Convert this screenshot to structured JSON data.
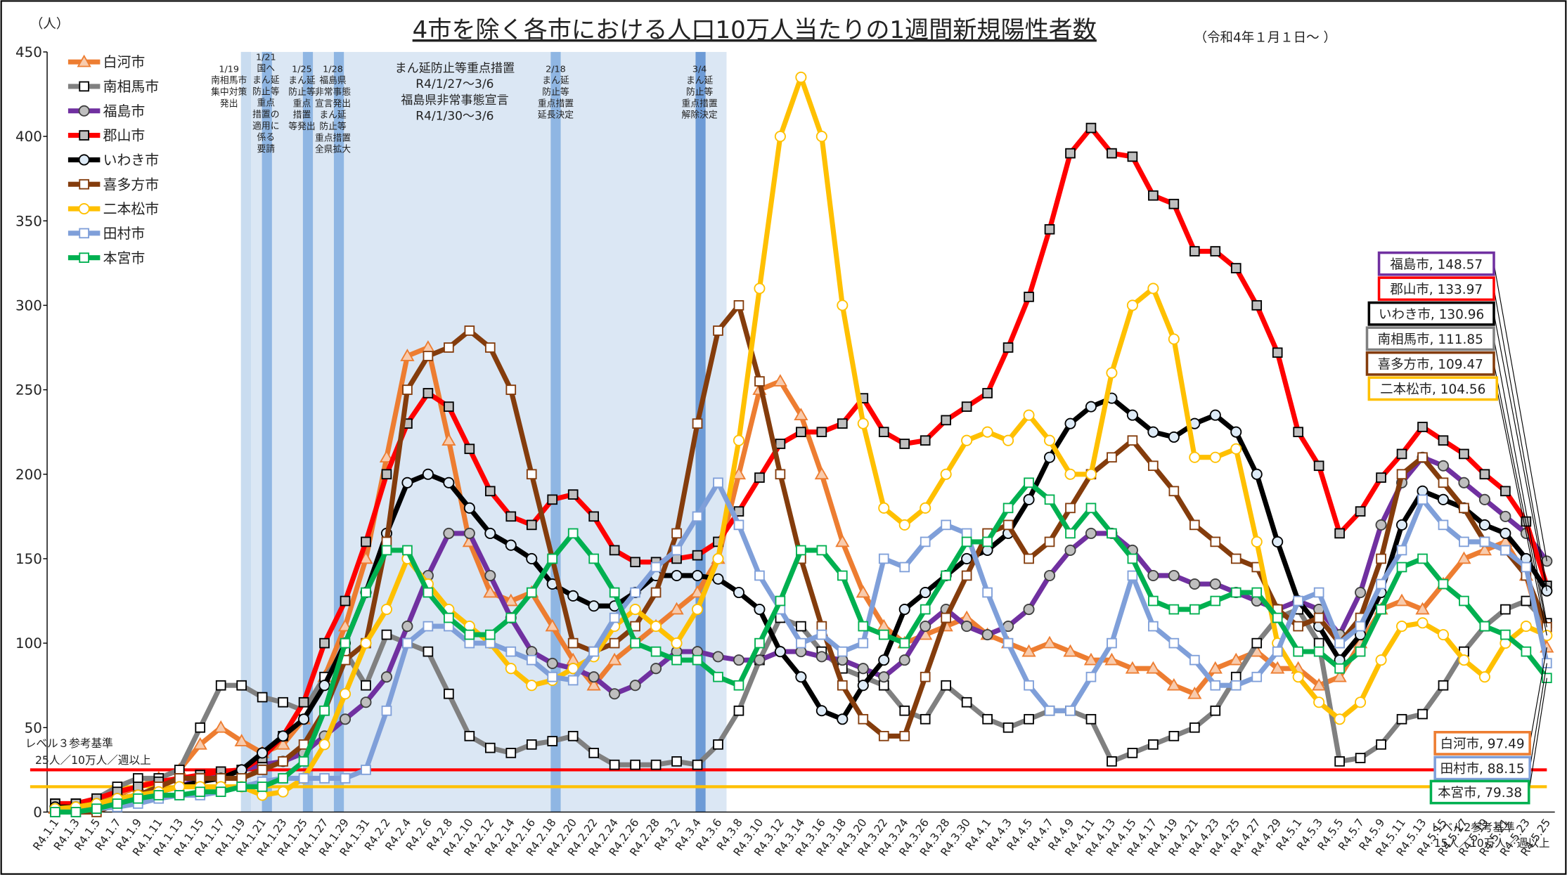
{
  "chart_data": {
    "type": "line",
    "title": "4市を除く各市における人口10万人当たりの1週間新規陽性者数",
    "subtitle": "（令和4年１月１日～ ）",
    "y_unit": "（人）",
    "legend": "upper left",
    "grid": false,
    "ylim": [
      0,
      450
    ],
    "yticks": [
      0,
      50,
      100,
      150,
      200,
      250,
      300,
      350,
      400,
      450
    ],
    "categories": [
      "R4.1.1",
      "R4.1.3",
      "R4.1.5",
      "R4.1.7",
      "R4.1.9",
      "R4.1.11",
      "R4.1.13",
      "R4.1.15",
      "R4.1.17",
      "R4.1.19",
      "R4.1.21",
      "R4.1.23",
      "R4.1.25",
      "R4.1.27",
      "R4.1.29",
      "R4.1.31",
      "R4.2.2",
      "R4.2.4",
      "R4.2.6",
      "R4.2.8",
      "R4.2.10",
      "R4.2.12",
      "R4.2.14",
      "R4.2.16",
      "R4.2.18",
      "R4.2.20",
      "R4.2.22",
      "R4.2.24",
      "R4.2.26",
      "R4.2.28",
      "R4.3.2",
      "R4.3.4",
      "R4.3.6",
      "R4.3.8",
      "R4.3.10",
      "R4.3.12",
      "R4.3.14",
      "R4.3.16",
      "R4.3.18",
      "R4.3.20",
      "R4.3.22",
      "R4.3.24",
      "R4.3.26",
      "R4.3.28",
      "R4.3.30",
      "R4.4.1",
      "R4.4.3",
      "R4.4.5",
      "R4.4.7",
      "R4.4.9",
      "R4.4.11",
      "R4.4.13",
      "R4.4.15",
      "R4.4.17",
      "R4.4.19",
      "R4.4.21",
      "R4.4.23",
      "R4.4.25",
      "R4.4.27",
      "R4.4.29",
      "R4.5.1",
      "R4.5.3",
      "R4.5.5",
      "R4.5.7",
      "R4.5.9",
      "R4.5.11",
      "R4.5.13",
      "R4.5.15",
      "R4.5.17",
      "R4.5.19",
      "R4.5.21",
      "R4.5.23",
      "R4.5.25"
    ],
    "series": [
      {
        "name": "白河市",
        "color": "#ed7d31",
        "marker": "triangle",
        "marker_fill": "#f8cbad",
        "marker_edge": "#ed7d31",
        "end_label": "白河市, 97.49",
        "values": [
          2,
          3,
          5,
          10,
          15,
          20,
          25,
          40,
          50,
          42,
          35,
          40,
          55,
          80,
          110,
          150,
          210,
          270,
          275,
          220,
          160,
          130,
          125,
          130,
          110,
          90,
          75,
          90,
          100,
          110,
          120,
          130,
          150,
          200,
          250,
          255,
          235,
          200,
          160,
          130,
          110,
          100,
          105,
          110,
          115,
          105,
          100,
          95,
          100,
          95,
          90,
          90,
          85,
          85,
          75,
          70,
          85,
          90,
          95,
          85,
          85,
          75,
          80,
          100,
          120,
          125,
          120,
          135,
          150,
          155,
          160,
          140,
          97.49
        ]
      },
      {
        "name": "南相馬市",
        "color": "#808080",
        "marker": "square",
        "marker_fill": "#ffffff",
        "marker_edge": "#000000",
        "end_label": "南相馬市, 111.85",
        "values": [
          5,
          5,
          8,
          15,
          20,
          20,
          25,
          50,
          75,
          75,
          68,
          65,
          60,
          80,
          95,
          75,
          105,
          100,
          95,
          70,
          45,
          38,
          35,
          40,
          42,
          45,
          35,
          28,
          28,
          28,
          30,
          28,
          40,
          60,
          90,
          115,
          110,
          95,
          85,
          80,
          75,
          60,
          55,
          75,
          65,
          55,
          50,
          55,
          60,
          60,
          55,
          30,
          35,
          40,
          45,
          50,
          60,
          80,
          100,
          115,
          120,
          100,
          30,
          32,
          40,
          55,
          58,
          75,
          95,
          110,
          120,
          125,
          111.85
        ]
      },
      {
        "name": "福島市",
        "color": "#7030a0",
        "marker": "circle",
        "marker_fill": "#bfbfbf",
        "marker_edge": "#404040",
        "end_label": "福島市, 148.57",
        "values": [
          2,
          3,
          5,
          8,
          10,
          12,
          15,
          20,
          22,
          25,
          28,
          30,
          35,
          45,
          55,
          65,
          80,
          110,
          140,
          165,
          165,
          140,
          115,
          95,
          88,
          85,
          80,
          70,
          75,
          85,
          95,
          95,
          92,
          90,
          90,
          95,
          95,
          92,
          90,
          85,
          80,
          90,
          110,
          120,
          110,
          105,
          110,
          120,
          140,
          155,
          165,
          165,
          155,
          140,
          140,
          135,
          135,
          130,
          125,
          120,
          125,
          120,
          105,
          130,
          170,
          195,
          210,
          205,
          195,
          185,
          175,
          165,
          148.57
        ]
      },
      {
        "name": "郡山市",
        "color": "#ff0000",
        "marker": "square",
        "marker_fill": "#bfbfbf",
        "marker_edge": "#000000",
        "end_label": "郡山市, 133.97",
        "values": [
          5,
          5,
          8,
          12,
          15,
          18,
          20,
          22,
          24,
          25,
          32,
          45,
          65,
          100,
          125,
          160,
          200,
          230,
          248,
          240,
          215,
          190,
          175,
          170,
          185,
          188,
          175,
          155,
          148,
          148,
          150,
          152,
          160,
          178,
          198,
          218,
          225,
          225,
          230,
          245,
          225,
          218,
          220,
          232,
          240,
          248,
          275,
          305,
          345,
          390,
          405,
          390,
          388,
          365,
          360,
          332,
          332,
          322,
          300,
          272,
          225,
          205,
          165,
          178,
          198,
          212,
          228,
          220,
          212,
          200,
          190,
          172,
          133.97
        ]
      },
      {
        "name": "いわき市",
        "color": "#000000",
        "marker": "circle",
        "marker_fill": "#deebf7",
        "marker_edge": "#000000",
        "end_label": "いわき市, 130.96",
        "values": [
          3,
          3,
          5,
          8,
          10,
          12,
          15,
          18,
          20,
          25,
          35,
          45,
          55,
          75,
          100,
          130,
          165,
          195,
          200,
          195,
          180,
          165,
          158,
          150,
          135,
          128,
          122,
          122,
          130,
          140,
          140,
          140,
          138,
          130,
          120,
          95,
          80,
          60,
          55,
          75,
          90,
          120,
          130,
          140,
          150,
          155,
          165,
          185,
          210,
          230,
          240,
          245,
          235,
          225,
          222,
          230,
          235,
          225,
          200,
          160,
          125,
          110,
          90,
          105,
          130,
          170,
          190,
          185,
          180,
          170,
          165,
          150,
          130.96
        ]
      },
      {
        "name": "喜多方市",
        "color": "#843c0c",
        "marker": "square",
        "marker_fill": "#ffffff",
        "marker_edge": "#843c0c",
        "end_label": "喜多方市, 109.47",
        "values": [
          0,
          0,
          0,
          5,
          10,
          15,
          20,
          20,
          20,
          20,
          25,
          30,
          40,
          60,
          90,
          100,
          160,
          250,
          270,
          275,
          285,
          275,
          250,
          200,
          150,
          100,
          95,
          100,
          110,
          130,
          165,
          230,
          285,
          300,
          255,
          200,
          150,
          110,
          75,
          55,
          45,
          45,
          80,
          115,
          140,
          165,
          170,
          150,
          160,
          180,
          200,
          210,
          220,
          205,
          190,
          170,
          160,
          150,
          145,
          120,
          110,
          115,
          100,
          115,
          150,
          200,
          210,
          195,
          180,
          160,
          155,
          140,
          109.47
        ]
      },
      {
        "name": "二本松市",
        "color": "#ffc000",
        "marker": "circle",
        "marker_fill": "#ffffff",
        "marker_edge": "#ffc000",
        "end_label": "二本松市, 104.56",
        "values": [
          2,
          3,
          5,
          8,
          10,
          12,
          15,
          15,
          15,
          15,
          10,
          12,
          20,
          40,
          70,
          100,
          120,
          150,
          135,
          120,
          110,
          100,
          85,
          75,
          78,
          85,
          92,
          110,
          120,
          110,
          100,
          120,
          150,
          220,
          310,
          400,
          435,
          400,
          300,
          230,
          180,
          170,
          180,
          200,
          220,
          225,
          220,
          235,
          220,
          200,
          200,
          260,
          300,
          310,
          280,
          210,
          210,
          215,
          160,
          100,
          80,
          65,
          55,
          65,
          90,
          110,
          112,
          105,
          90,
          80,
          100,
          110,
          104.56
        ]
      },
      {
        "name": "田村市",
        "color": "#7f9fd9",
        "marker": "square",
        "marker_fill": "#ffffff",
        "marker_edge": "#7f9fd9",
        "end_label": "田村市, 88.15",
        "values": [
          0,
          0,
          2,
          3,
          5,
          8,
          10,
          10,
          12,
          15,
          18,
          20,
          20,
          20,
          20,
          25,
          60,
          100,
          110,
          110,
          100,
          100,
          95,
          90,
          80,
          78,
          95,
          115,
          130,
          145,
          155,
          175,
          195,
          170,
          140,
          120,
          100,
          105,
          95,
          100,
          150,
          145,
          160,
          170,
          165,
          130,
          100,
          75,
          60,
          60,
          80,
          100,
          140,
          110,
          100,
          90,
          75,
          75,
          80,
          95,
          125,
          130,
          100,
          110,
          135,
          155,
          185,
          170,
          160,
          160,
          155,
          145,
          88.15
        ]
      },
      {
        "name": "本宮市",
        "color": "#00b050",
        "marker": "square",
        "marker_fill": "#ffffff",
        "marker_edge": "#00b050",
        "end_label": "本宮市, 79.38",
        "values": [
          0,
          0,
          2,
          5,
          8,
          10,
          10,
          12,
          12,
          15,
          15,
          20,
          30,
          60,
          100,
          130,
          155,
          155,
          130,
          115,
          105,
          105,
          115,
          130,
          150,
          165,
          150,
          130,
          100,
          95,
          90,
          90,
          80,
          75,
          100,
          125,
          155,
          155,
          140,
          110,
          105,
          100,
          120,
          140,
          160,
          160,
          180,
          195,
          185,
          165,
          180,
          165,
          150,
          125,
          120,
          120,
          125,
          130,
          130,
          115,
          95,
          95,
          85,
          95,
          120,
          145,
          150,
          135,
          125,
          110,
          105,
          95,
          79.38
        ]
      }
    ],
    "reference_lines": [
      {
        "value": 25,
        "color": "#ff0000",
        "label": [
          "レベル３参考基準",
          "25人／10万人／週以上"
        ]
      },
      {
        "value": 15,
        "color": "#ffc000",
        "label": [
          "レベル2参考基準",
          "15人／10万人／週以上"
        ]
      }
    ],
    "annotations": [
      {
        "lines": [
          "1/19",
          "南相馬市",
          "集中対策",
          "発出"
        ]
      },
      {
        "lines": [
          "1/21",
          "国へ",
          "まん延",
          "防止等",
          "重点",
          "措置の",
          "適用に",
          "係る",
          "要請"
        ]
      },
      {
        "lines": [
          "1/25",
          "まん延",
          "防止等",
          "重点",
          "措置",
          "等発出"
        ]
      },
      {
        "lines": [
          "1/28",
          "福島県",
          "非常事態",
          "宣言発出",
          "まん延",
          "防止等",
          "重点措置",
          "全県拡大"
        ]
      },
      {
        "lines": [
          "まん延防止等重点措置",
          "R4/1/27～3/6",
          "福島県非常事態宣言",
          "R4/1/30～3/6"
        ]
      },
      {
        "lines": [
          "2/18",
          "まん延",
          "防止等",
          "重点措置",
          "延長決定"
        ]
      },
      {
        "lines": [
          "3/4",
          "まん延",
          "防止等",
          "重点措置",
          "解除決定"
        ]
      }
    ]
  }
}
